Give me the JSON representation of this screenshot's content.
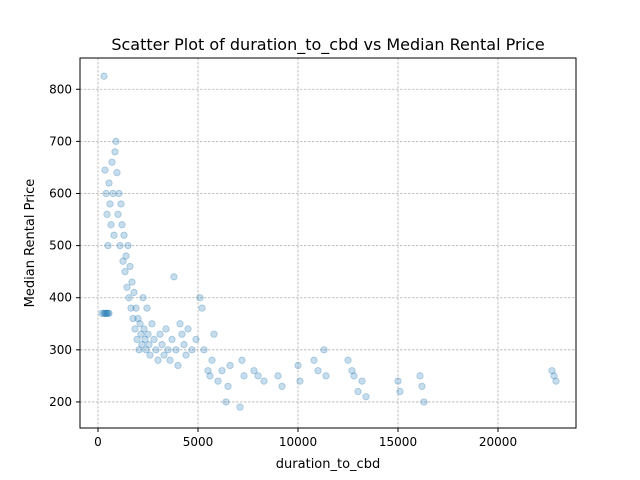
{
  "chart_data": {
    "type": "scatter",
    "title": "Scatter Plot of duration_to_cbd vs Median Rental Price",
    "xlabel": "duration_to_cbd",
    "ylabel": "Median Rental Price",
    "xlim": [
      -900,
      23900
    ],
    "ylim": [
      150,
      860
    ],
    "xticks": [
      0,
      5000,
      10000,
      15000,
      20000
    ],
    "xtick_labels": [
      "0",
      "5000",
      "10000",
      "15000",
      "20000"
    ],
    "yticks": [
      200,
      300,
      400,
      500,
      600,
      700,
      800
    ],
    "ytick_labels": [
      "200",
      "300",
      "400",
      "500",
      "600",
      "700",
      "800"
    ],
    "grid": true,
    "marker_color": "#1f77b4",
    "marker_alpha": 0.25,
    "series": [
      {
        "points": [
          [
            300,
            825
          ],
          [
            200,
            370
          ],
          [
            300,
            370
          ],
          [
            350,
            370
          ],
          [
            400,
            370
          ],
          [
            450,
            370
          ],
          [
            500,
            370
          ],
          [
            550,
            370
          ],
          [
            350,
            645
          ],
          [
            400,
            600
          ],
          [
            450,
            560
          ],
          [
            500,
            500
          ],
          [
            550,
            620
          ],
          [
            600,
            580
          ],
          [
            650,
            540
          ],
          [
            700,
            660
          ],
          [
            750,
            600
          ],
          [
            800,
            520
          ],
          [
            850,
            680
          ],
          [
            900,
            700
          ],
          [
            950,
            640
          ],
          [
            1000,
            560
          ],
          [
            1050,
            600
          ],
          [
            1100,
            500
          ],
          [
            1150,
            580
          ],
          [
            1200,
            540
          ],
          [
            1250,
            470
          ],
          [
            1300,
            520
          ],
          [
            1350,
            450
          ],
          [
            1400,
            480
          ],
          [
            1450,
            420
          ],
          [
            1500,
            500
          ],
          [
            1550,
            400
          ],
          [
            1600,
            460
          ],
          [
            1650,
            380
          ],
          [
            1700,
            430
          ],
          [
            1750,
            360
          ],
          [
            1800,
            410
          ],
          [
            1850,
            340
          ],
          [
            1900,
            380
          ],
          [
            1950,
            320
          ],
          [
            2000,
            360
          ],
          [
            2050,
            300
          ],
          [
            2100,
            350
          ],
          [
            2150,
            330
          ],
          [
            2200,
            310
          ],
          [
            2250,
            400
          ],
          [
            2300,
            340
          ],
          [
            2350,
            320
          ],
          [
            2400,
            300
          ],
          [
            2450,
            380
          ],
          [
            2500,
            330
          ],
          [
            2550,
            310
          ],
          [
            2600,
            290
          ],
          [
            2700,
            350
          ],
          [
            2800,
            320
          ],
          [
            2900,
            300
          ],
          [
            3000,
            280
          ],
          [
            3100,
            330
          ],
          [
            3200,
            310
          ],
          [
            3300,
            290
          ],
          [
            3400,
            340
          ],
          [
            3500,
            300
          ],
          [
            3600,
            280
          ],
          [
            3700,
            320
          ],
          [
            3800,
            440
          ],
          [
            3900,
            300
          ],
          [
            4000,
            270
          ],
          [
            4100,
            350
          ],
          [
            4200,
            330
          ],
          [
            4300,
            310
          ],
          [
            4400,
            290
          ],
          [
            4500,
            340
          ],
          [
            4700,
            300
          ],
          [
            4900,
            320
          ],
          [
            5100,
            400
          ],
          [
            5200,
            380
          ],
          [
            5300,
            300
          ],
          [
            5500,
            260
          ],
          [
            5600,
            250
          ],
          [
            5700,
            280
          ],
          [
            5800,
            330
          ],
          [
            6000,
            240
          ],
          [
            6200,
            260
          ],
          [
            6400,
            200
          ],
          [
            6500,
            230
          ],
          [
            6600,
            270
          ],
          [
            7100,
            190
          ],
          [
            7200,
            280
          ],
          [
            7300,
            250
          ],
          [
            7800,
            260
          ],
          [
            8000,
            250
          ],
          [
            8300,
            240
          ],
          [
            9000,
            250
          ],
          [
            9200,
            230
          ],
          [
            10000,
            270
          ],
          [
            10100,
            240
          ],
          [
            10800,
            280
          ],
          [
            11000,
            260
          ],
          [
            11300,
            300
          ],
          [
            11400,
            250
          ],
          [
            12500,
            280
          ],
          [
            12700,
            260
          ],
          [
            12800,
            250
          ],
          [
            13000,
            220
          ],
          [
            13200,
            240
          ],
          [
            13400,
            210
          ],
          [
            15000,
            240
          ],
          [
            15100,
            220
          ],
          [
            16100,
            250
          ],
          [
            16200,
            230
          ],
          [
            16300,
            200
          ],
          [
            22700,
            260
          ],
          [
            22800,
            250
          ],
          [
            22900,
            240
          ]
        ]
      }
    ]
  }
}
